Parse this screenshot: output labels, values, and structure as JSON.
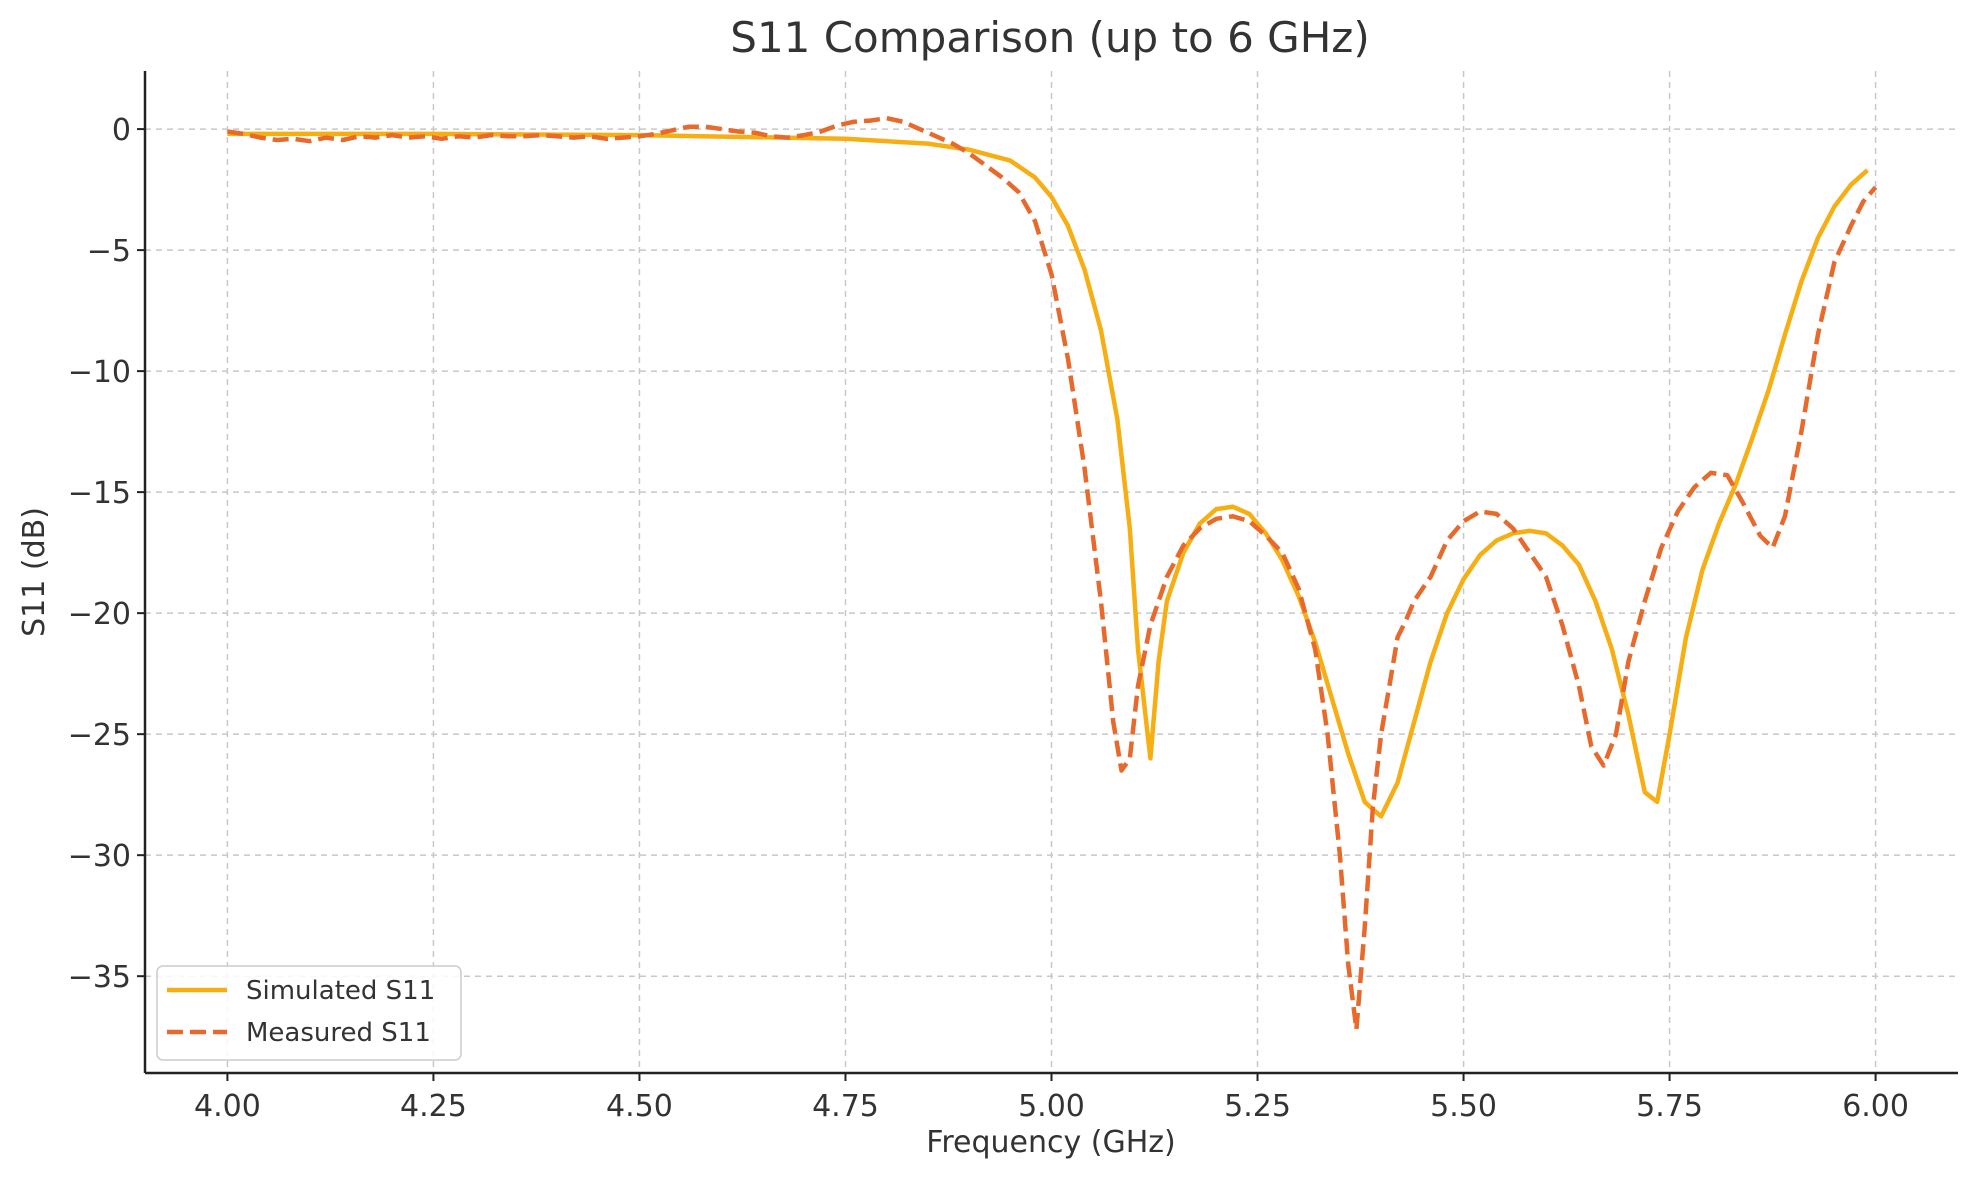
{
  "chart_data": {
    "type": "line",
    "title": "S11 Comparison (up to 6 GHz)",
    "xlabel": "Frequency (GHz)",
    "ylabel": "S11 (dB)",
    "xlim": [
      3.9,
      6.1
    ],
    "ylim": [
      -39,
      2.4
    ],
    "x_ticks": [
      4.0,
      4.25,
      4.5,
      4.75,
      5.0,
      5.25,
      5.5,
      5.75,
      6.0
    ],
    "x_tick_labels": [
      "4.00",
      "4.25",
      "4.50",
      "4.75",
      "5.00",
      "5.25",
      "5.50",
      "5.75",
      "6.00"
    ],
    "y_ticks": [
      0,
      -5,
      -10,
      -15,
      -20,
      -25,
      -30,
      -35
    ],
    "y_tick_labels": [
      "0",
      "−5",
      "−10",
      "−15",
      "−20",
      "−25",
      "−30",
      "−35"
    ],
    "grid": true,
    "legend_position": "lower-left",
    "series": [
      {
        "name": "Simulated S11",
        "color": "#F6AE13",
        "style": "solid",
        "points": [
          [
            4.0,
            -0.2
          ],
          [
            4.25,
            -0.2
          ],
          [
            4.5,
            -0.25
          ],
          [
            4.75,
            -0.4
          ],
          [
            4.85,
            -0.6
          ],
          [
            4.9,
            -0.85
          ],
          [
            4.95,
            -1.3
          ],
          [
            4.98,
            -2.0
          ],
          [
            5.0,
            -2.8
          ],
          [
            5.02,
            -4.0
          ],
          [
            5.04,
            -5.8
          ],
          [
            5.06,
            -8.3
          ],
          [
            5.08,
            -12.0
          ],
          [
            5.095,
            -16.5
          ],
          [
            5.105,
            -21.5
          ],
          [
            5.12,
            -26.0
          ],
          [
            5.13,
            -22.0
          ],
          [
            5.14,
            -19.5
          ],
          [
            5.16,
            -17.5
          ],
          [
            5.18,
            -16.3
          ],
          [
            5.2,
            -15.7
          ],
          [
            5.22,
            -15.6
          ],
          [
            5.24,
            -15.9
          ],
          [
            5.26,
            -16.7
          ],
          [
            5.28,
            -17.8
          ],
          [
            5.3,
            -19.3
          ],
          [
            5.32,
            -21.2
          ],
          [
            5.34,
            -23.5
          ],
          [
            5.36,
            -25.8
          ],
          [
            5.38,
            -27.8
          ],
          [
            5.4,
            -28.4
          ],
          [
            5.42,
            -27.0
          ],
          [
            5.44,
            -24.5
          ],
          [
            5.46,
            -22.0
          ],
          [
            5.48,
            -20.0
          ],
          [
            5.5,
            -18.6
          ],
          [
            5.52,
            -17.6
          ],
          [
            5.54,
            -17.0
          ],
          [
            5.56,
            -16.7
          ],
          [
            5.58,
            -16.6
          ],
          [
            5.6,
            -16.7
          ],
          [
            5.62,
            -17.2
          ],
          [
            5.64,
            -18.0
          ],
          [
            5.66,
            -19.5
          ],
          [
            5.68,
            -21.5
          ],
          [
            5.7,
            -24.2
          ],
          [
            5.72,
            -27.4
          ],
          [
            5.735,
            -27.8
          ],
          [
            5.75,
            -25.0
          ],
          [
            5.77,
            -21.0
          ],
          [
            5.79,
            -18.2
          ],
          [
            5.81,
            -16.3
          ],
          [
            5.83,
            -14.7
          ],
          [
            5.85,
            -12.8
          ],
          [
            5.87,
            -10.8
          ],
          [
            5.89,
            -8.5
          ],
          [
            5.91,
            -6.3
          ],
          [
            5.93,
            -4.5
          ],
          [
            5.95,
            -3.2
          ],
          [
            5.97,
            -2.3
          ],
          [
            5.99,
            -1.7
          ]
        ]
      },
      {
        "name": "Measured S11",
        "color": "#E8692C",
        "style": "dashed",
        "points": [
          [
            4.0,
            -0.1
          ],
          [
            4.02,
            -0.2
          ],
          [
            4.04,
            -0.35
          ],
          [
            4.06,
            -0.45
          ],
          [
            4.08,
            -0.4
          ],
          [
            4.1,
            -0.5
          ],
          [
            4.12,
            -0.35
          ],
          [
            4.14,
            -0.45
          ],
          [
            4.16,
            -0.3
          ],
          [
            4.18,
            -0.35
          ],
          [
            4.2,
            -0.25
          ],
          [
            4.22,
            -0.35
          ],
          [
            4.24,
            -0.3
          ],
          [
            4.26,
            -0.4
          ],
          [
            4.28,
            -0.3
          ],
          [
            4.3,
            -0.35
          ],
          [
            4.32,
            -0.25
          ],
          [
            4.34,
            -0.3
          ],
          [
            4.36,
            -0.3
          ],
          [
            4.38,
            -0.25
          ],
          [
            4.4,
            -0.3
          ],
          [
            4.42,
            -0.35
          ],
          [
            4.44,
            -0.3
          ],
          [
            4.46,
            -0.4
          ],
          [
            4.48,
            -0.35
          ],
          [
            4.5,
            -0.3
          ],
          [
            4.52,
            -0.2
          ],
          [
            4.54,
            -0.05
          ],
          [
            4.56,
            0.1
          ],
          [
            4.58,
            0.1
          ],
          [
            4.6,
            0.0
          ],
          [
            4.62,
            -0.1
          ],
          [
            4.64,
            -0.15
          ],
          [
            4.66,
            -0.3
          ],
          [
            4.68,
            -0.35
          ],
          [
            4.7,
            -0.25
          ],
          [
            4.72,
            -0.1
          ],
          [
            4.74,
            0.15
          ],
          [
            4.76,
            0.3
          ],
          [
            4.78,
            0.35
          ],
          [
            4.8,
            0.45
          ],
          [
            4.82,
            0.3
          ],
          [
            4.84,
            0.0
          ],
          [
            4.86,
            -0.3
          ],
          [
            4.88,
            -0.6
          ],
          [
            4.9,
            -1.0
          ],
          [
            4.92,
            -1.5
          ],
          [
            4.94,
            -2.0
          ],
          [
            4.96,
            -2.6
          ],
          [
            4.98,
            -3.8
          ],
          [
            5.0,
            -6.0
          ],
          [
            5.02,
            -9.5
          ],
          [
            5.04,
            -14.0
          ],
          [
            5.06,
            -19.5
          ],
          [
            5.075,
            -24.5
          ],
          [
            5.085,
            -26.5
          ],
          [
            5.095,
            -26.0
          ],
          [
            5.105,
            -23.0
          ],
          [
            5.12,
            -20.5
          ],
          [
            5.14,
            -18.5
          ],
          [
            5.16,
            -17.2
          ],
          [
            5.18,
            -16.5
          ],
          [
            5.2,
            -16.1
          ],
          [
            5.22,
            -16.0
          ],
          [
            5.24,
            -16.2
          ],
          [
            5.26,
            -16.8
          ],
          [
            5.28,
            -17.5
          ],
          [
            5.3,
            -19.0
          ],
          [
            5.32,
            -21.5
          ],
          [
            5.335,
            -25.0
          ],
          [
            5.35,
            -30.0
          ],
          [
            5.36,
            -34.5
          ],
          [
            5.37,
            -37.2
          ],
          [
            5.38,
            -33.0
          ],
          [
            5.39,
            -28.0
          ],
          [
            5.4,
            -25.0
          ],
          [
            5.41,
            -23.0
          ],
          [
            5.42,
            -21.0
          ],
          [
            5.43,
            -20.3
          ],
          [
            5.44,
            -19.5
          ],
          [
            5.46,
            -18.5
          ],
          [
            5.48,
            -17.0
          ],
          [
            5.5,
            -16.2
          ],
          [
            5.52,
            -15.8
          ],
          [
            5.54,
            -15.9
          ],
          [
            5.56,
            -16.5
          ],
          [
            5.58,
            -17.5
          ],
          [
            5.6,
            -18.5
          ],
          [
            5.62,
            -20.5
          ],
          [
            5.64,
            -23.0
          ],
          [
            5.655,
            -25.5
          ],
          [
            5.67,
            -26.3
          ],
          [
            5.685,
            -25.0
          ],
          [
            5.7,
            -22.0
          ],
          [
            5.72,
            -19.5
          ],
          [
            5.74,
            -17.3
          ],
          [
            5.76,
            -15.8
          ],
          [
            5.78,
            -14.8
          ],
          [
            5.8,
            -14.2
          ],
          [
            5.82,
            -14.3
          ],
          [
            5.84,
            -15.5
          ],
          [
            5.86,
            -16.8
          ],
          [
            5.875,
            -17.3
          ],
          [
            5.89,
            -16.0
          ],
          [
            5.91,
            -12.5
          ],
          [
            5.93,
            -8.5
          ],
          [
            5.95,
            -5.5
          ],
          [
            5.97,
            -4.0
          ],
          [
            5.985,
            -3.0
          ],
          [
            6.0,
            -2.4
          ]
        ]
      }
    ]
  }
}
